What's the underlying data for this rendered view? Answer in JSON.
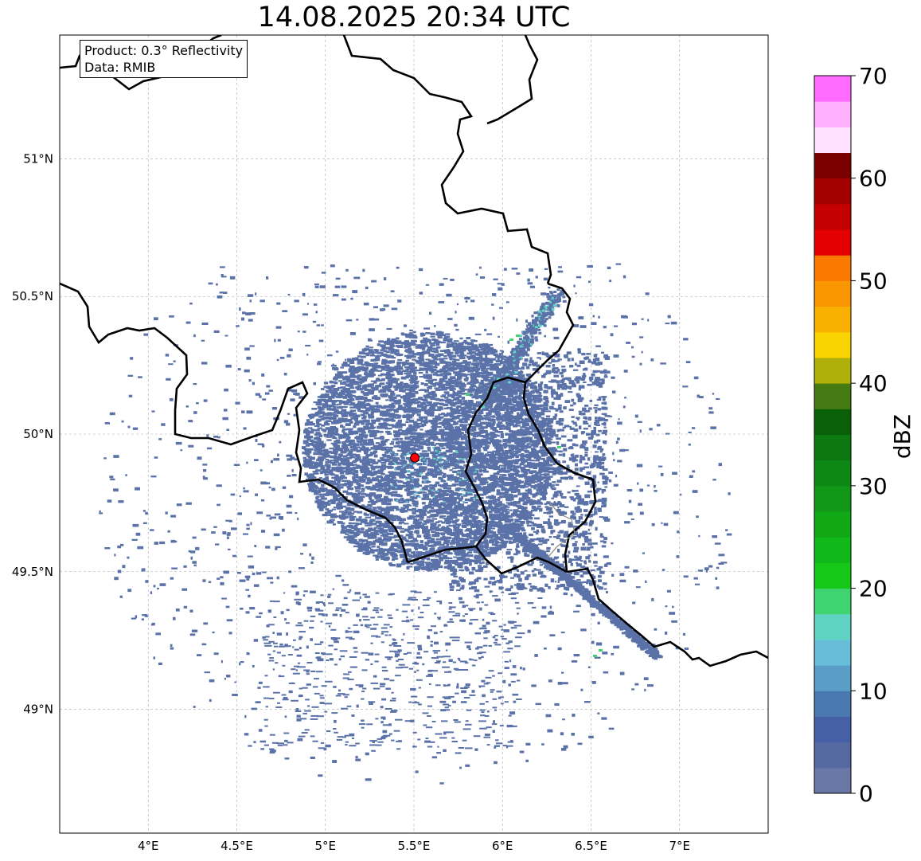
{
  "title": "14.08.2025 20:34 UTC",
  "info": {
    "product": "Product: 0.3° Reflectivity",
    "data_source": "Data: RMIB"
  },
  "map": {
    "extent": {
      "lon_min": 3.5,
      "lon_max": 7.5,
      "lat_min": 48.55,
      "lat_max": 51.45
    },
    "lon_ticks": [
      {
        "value": 4.0,
        "label": "4°E"
      },
      {
        "value": 4.5,
        "label": "4.5°E"
      },
      {
        "value": 5.0,
        "label": "5°E"
      },
      {
        "value": 5.5,
        "label": "5.5°E"
      },
      {
        "value": 6.0,
        "label": "6°E"
      },
      {
        "value": 6.5,
        "label": "6.5°E"
      },
      {
        "value": 7.0,
        "label": "7°E"
      }
    ],
    "lat_ticks": [
      {
        "value": 49.0,
        "label": "49°N"
      },
      {
        "value": 49.5,
        "label": "49.5°N"
      },
      {
        "value": 50.0,
        "label": "50°N"
      },
      {
        "value": 50.5,
        "label": "50.5°N"
      },
      {
        "value": 51.0,
        "label": "51°N"
      }
    ],
    "grid": true,
    "radar_site": {
      "lon": 5.505,
      "lat": 49.914,
      "color": "#ff0000"
    },
    "echo_color": "#5a72a8",
    "border_color": "#000000"
  },
  "colorbar": {
    "label": "dBZ",
    "ticks": [
      "0",
      "10",
      "20",
      "30",
      "40",
      "50",
      "60",
      "70"
    ],
    "vmin": 0,
    "vmax": 70,
    "step": 2.5,
    "colors": [
      "#6a78a8",
      "#55689f",
      "#4560a4",
      "#4a78b0",
      "#5a9ec8",
      "#66bed8",
      "#60d4c4",
      "#3fd470",
      "#15c818",
      "#10b81a",
      "#11a816",
      "#129818",
      "#0d8814",
      "#0c7810",
      "#0a6008",
      "#467a12",
      "#b0b00a",
      "#fad400",
      "#fab000",
      "#fa9600",
      "#fa7a00",
      "#e40000",
      "#c40000",
      "#a40000",
      "#7a0000",
      "#ffe0ff",
      "#ffb0ff",
      "#ff6cff",
      "#ee32ee"
    ]
  }
}
